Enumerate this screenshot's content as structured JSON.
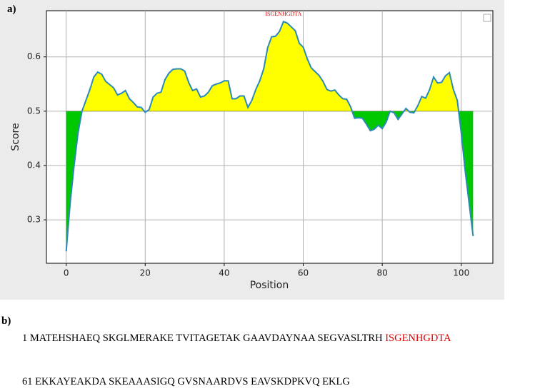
{
  "panel_a_label": "a)",
  "chart_data": {
    "type": "line",
    "xlabel": "Position",
    "ylabel": "Score",
    "x": [
      0,
      1,
      2,
      3,
      4,
      5,
      6,
      7,
      8,
      9,
      10,
      11,
      12,
      13,
      14,
      15,
      16,
      17,
      18,
      19,
      20,
      21,
      22,
      23,
      24,
      25,
      26,
      27,
      28,
      29,
      30,
      31,
      32,
      33,
      34,
      35,
      36,
      37,
      38,
      39,
      40,
      41,
      42,
      43,
      44,
      45,
      46,
      47,
      48,
      49,
      50,
      51,
      52,
      53,
      54,
      55,
      56,
      57,
      58,
      59,
      60,
      61,
      62,
      63,
      64,
      65,
      66,
      67,
      68,
      69,
      70,
      71,
      72,
      73,
      74,
      75,
      76,
      77,
      78,
      79,
      80,
      81,
      82,
      83,
      84,
      85,
      86,
      87,
      88,
      89,
      90,
      91,
      92,
      93,
      94,
      95,
      96,
      97,
      98,
      99,
      100,
      101,
      102,
      103
    ],
    "series": [
      {
        "color": "#2a8ab8",
        "values": [
          0.242,
          0.33,
          0.4,
          0.46,
          0.5,
          0.52,
          0.54,
          0.563,
          0.572,
          0.568,
          0.555,
          0.549,
          0.543,
          0.53,
          0.533,
          0.538,
          0.523,
          0.516,
          0.508,
          0.507,
          0.498,
          0.503,
          0.526,
          0.533,
          0.535,
          0.558,
          0.57,
          0.577,
          0.578,
          0.578,
          0.574,
          0.553,
          0.538,
          0.541,
          0.526,
          0.528,
          0.535,
          0.547,
          0.55,
          0.552,
          0.556,
          0.556,
          0.523,
          0.523,
          0.528,
          0.528,
          0.507,
          0.52,
          0.54,
          0.556,
          0.578,
          0.617,
          0.637,
          0.638,
          0.647,
          0.665,
          0.662,
          0.655,
          0.648,
          0.625,
          0.618,
          0.597,
          0.58,
          0.573,
          0.566,
          0.555,
          0.54,
          0.537,
          0.539,
          0.53,
          0.523,
          0.522,
          0.508,
          0.487,
          0.488,
          0.487,
          0.476,
          0.464,
          0.467,
          0.474,
          0.468,
          0.48,
          0.5,
          0.497,
          0.485,
          0.495,
          0.505,
          0.498,
          0.497,
          0.51,
          0.527,
          0.524,
          0.54,
          0.563,
          0.552,
          0.553,
          0.565,
          0.571,
          0.54,
          0.52,
          0.46,
          0.39,
          0.33,
          0.27
        ]
      }
    ],
    "threshold": 0.5,
    "fill_above": "#ffff00",
    "fill_below": "#00c800",
    "xlim": [
      -5,
      108
    ],
    "ylim": [
      0.22,
      0.685
    ],
    "xticks": [
      0,
      20,
      40,
      60,
      80,
      100
    ],
    "yticks": [
      0.3,
      0.4,
      0.5,
      0.6
    ],
    "grid": true,
    "annotations": [
      {
        "text": "ISGENHGDTA",
        "x": 55,
        "y": 0.678,
        "color": "#e00000"
      }
    ]
  },
  "panel_b_label": "b)",
  "sequence": {
    "highlight_color": "#e00000",
    "lines": [
      {
        "number": "1",
        "groups": [
          "MATEHSHAEQ",
          "SKGLMERAKE",
          "TVITAGETAK",
          "GAAVDAYNAA",
          "SEGVASLTRH",
          "ISGENHGDTA"
        ],
        "highlighted_group": 5
      },
      {
        "number": "61",
        "groups": [
          "EKKAYEAKDA",
          "SKEAAASIGQ",
          "GVSNAARDVS",
          "EAVSKDPKVQ",
          "EKLG"
        ],
        "highlighted_group": null
      }
    ]
  }
}
